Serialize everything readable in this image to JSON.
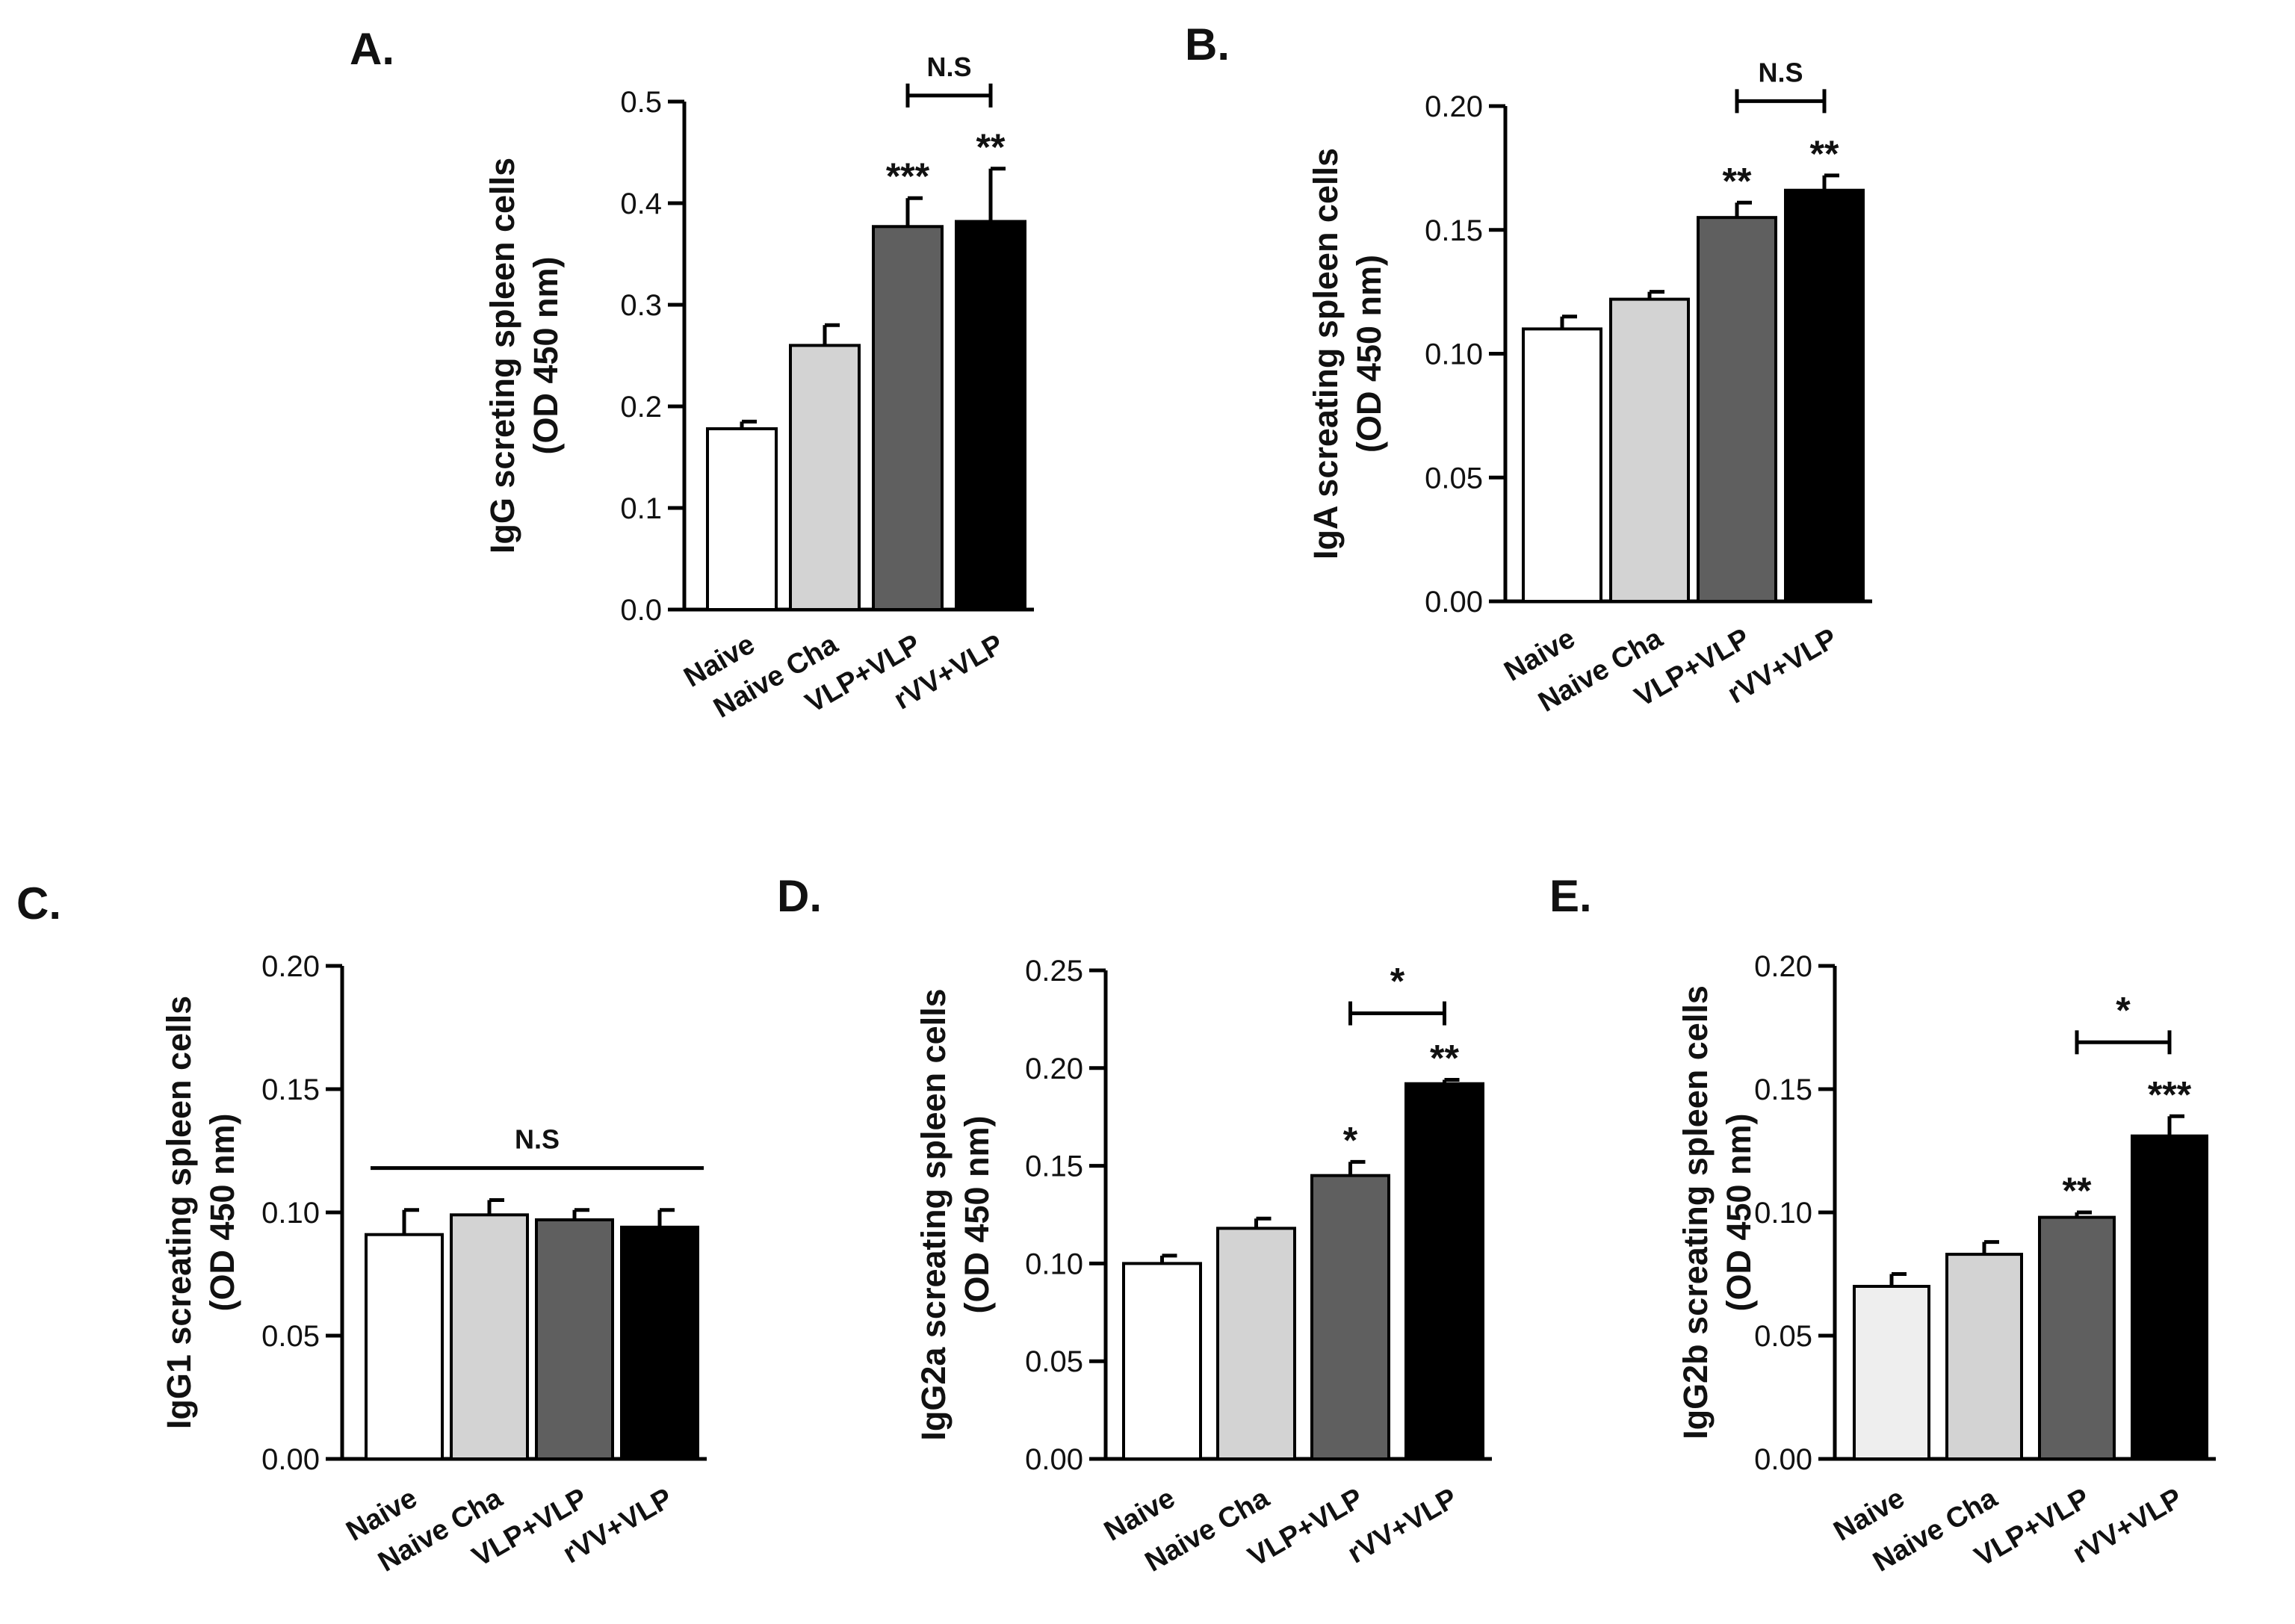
{
  "chart_data": [
    {
      "type": "bar",
      "panel": "A.",
      "categories": [
        "Naive",
        "Naive Cha",
        "VLP+VLP",
        "rVV+VLP"
      ],
      "values": [
        0.178,
        0.26,
        0.377,
        0.382
      ],
      "errors": [
        0.007,
        0.02,
        0.028,
        0.052
      ],
      "colors": [
        "#ffffff",
        "#d3d3d3",
        "#5f5f5f",
        "#000000"
      ],
      "significance": [
        "",
        "",
        "***",
        "**"
      ],
      "bracket": {
        "from": 2,
        "to": 3,
        "label": "N.S",
        "y": 0.506
      },
      "ylabel": [
        "IgG screting spleen cells",
        "(OD 450 nm)"
      ],
      "ylim": [
        0,
        0.5
      ],
      "yticks": [
        0.0,
        0.1,
        0.2,
        0.3,
        0.4,
        0.5
      ],
      "ytick_labels": [
        "0.0",
        "0.1",
        "0.2",
        "0.3",
        "0.4",
        "0.5"
      ]
    },
    {
      "type": "bar",
      "panel": "B.",
      "categories": [
        "Naive",
        "Naive Cha",
        "VLP+VLP",
        "rVV+VLP"
      ],
      "values": [
        0.11,
        0.122,
        0.155,
        0.166
      ],
      "errors": [
        0.005,
        0.003,
        0.006,
        0.006
      ],
      "colors": [
        "#ffffff",
        "#d3d3d3",
        "#5f5f5f",
        "#000000"
      ],
      "significance": [
        "",
        "",
        "**",
        "**"
      ],
      "bracket": {
        "from": 2,
        "to": 3,
        "label": "N.S",
        "y": 0.202
      },
      "ylabel": [
        "IgA screating spleen cells",
        "(OD 450 nm)"
      ],
      "ylim": [
        0,
        0.2
      ],
      "yticks": [
        0.0,
        0.05,
        0.1,
        0.15,
        0.2
      ],
      "ytick_labels": [
        "0.00",
        "0.05",
        "0.10",
        "0.15",
        "0.20"
      ]
    },
    {
      "type": "bar",
      "panel": "C.",
      "categories": [
        "Naive",
        "Naive Cha",
        "VLP+VLP",
        "rVV+VLP"
      ],
      "values": [
        0.091,
        0.099,
        0.097,
        0.094
      ],
      "errors": [
        0.01,
        0.006,
        0.004,
        0.007
      ],
      "colors": [
        "#ffffff",
        "#d3d3d3",
        "#5f5f5f",
        "#000000"
      ],
      "significance": [
        "",
        "",
        "",
        ""
      ],
      "bracket": {
        "from": 0,
        "to": 3,
        "label": "N.S",
        "y": 0.118,
        "style": "line"
      },
      "ylabel": [
        "IgG1 screating spleen cells",
        "(OD 450 nm)"
      ],
      "ylim": [
        0,
        0.2
      ],
      "yticks": [
        0.0,
        0.05,
        0.1,
        0.15,
        0.2
      ],
      "ytick_labels": [
        "0.00",
        "0.05",
        "0.10",
        "0.15",
        "0.20"
      ]
    },
    {
      "type": "bar",
      "panel": "D.",
      "categories": [
        "Naive",
        "Naive Cha",
        "VLP+VLP",
        "rVV+VLP"
      ],
      "values": [
        0.1,
        0.118,
        0.145,
        0.192
      ],
      "errors": [
        0.004,
        0.005,
        0.007,
        0.002
      ],
      "colors": [
        "#ffffff",
        "#d3d3d3",
        "#5f5f5f",
        "#000000"
      ],
      "significance": [
        "",
        "",
        "*",
        "**"
      ],
      "bracket": {
        "from": 2,
        "to": 3,
        "label": "*",
        "y": 0.228
      },
      "ylabel": [
        "IgG2a screating spleen cells",
        "(OD 450 nm)"
      ],
      "ylim": [
        0,
        0.25
      ],
      "yticks": [
        0.0,
        0.05,
        0.1,
        0.15,
        0.2,
        0.25
      ],
      "ytick_labels": [
        "0.00",
        "0.05",
        "0.10",
        "0.15",
        "0.20",
        "0.25"
      ]
    },
    {
      "type": "bar",
      "panel": "E.",
      "categories": [
        "Naive",
        "Naive Cha",
        "VLP+VLP",
        "rVV+VLP"
      ],
      "values": [
        0.07,
        0.083,
        0.098,
        0.131
      ],
      "errors": [
        0.005,
        0.005,
        0.002,
        0.008
      ],
      "colors": [
        "#eeeeee",
        "#d3d3d3",
        "#5f5f5f",
        "#000000"
      ],
      "significance": [
        "",
        "",
        "**",
        "***"
      ],
      "bracket": {
        "from": 2,
        "to": 3,
        "label": "*",
        "y": 0.169
      },
      "ylabel": [
        "IgG2b screating spleen cells",
        "(OD 450 nm)"
      ],
      "ylim": [
        0,
        0.2
      ],
      "yticks": [
        0.0,
        0.05,
        0.1,
        0.15,
        0.2
      ],
      "ytick_labels": [
        "0.00",
        "0.05",
        "0.10",
        "0.15",
        "0.20"
      ]
    }
  ]
}
